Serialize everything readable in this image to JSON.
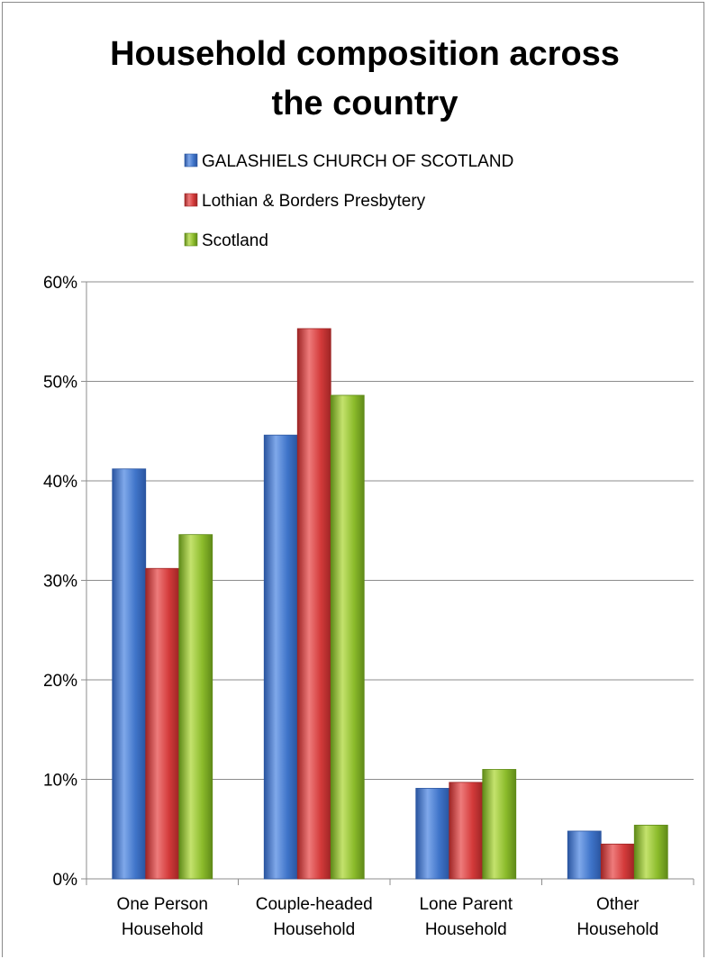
{
  "chart_data": {
    "type": "bar",
    "title_lines": [
      "Household composition across",
      "the country"
    ],
    "categories": [
      [
        "One Person",
        "Household"
      ],
      [
        "Couple-headed",
        "Household"
      ],
      [
        "Lone Parent",
        "Household"
      ],
      [
        "Other",
        "Household"
      ]
    ],
    "series": [
      {
        "name": "GALASHIELS CHURCH OF SCOTLAND",
        "values": [
          41.2,
          44.6,
          9.1,
          4.8
        ],
        "color": "#3f74c9",
        "light": "#7fa8ea",
        "dark": "#2a55a0"
      },
      {
        "name": "Lothian & Borders Presbytery",
        "values": [
          31.2,
          55.3,
          9.7,
          3.5
        ],
        "color": "#d33a3a",
        "light": "#ee7b7b",
        "dark": "#9e2525"
      },
      {
        "name": "Scotland",
        "values": [
          34.6,
          48.6,
          11.0,
          5.4
        ],
        "color": "#8bbb2b",
        "light": "#c4e26d",
        "dark": "#5f8a18"
      }
    ],
    "ylim": [
      0,
      60
    ],
    "ytick_step": 10,
    "ytick_labels": [
      "0%",
      "10%",
      "20%",
      "30%",
      "40%",
      "50%",
      "60%"
    ],
    "grid": true,
    "legend_position": "top"
  }
}
